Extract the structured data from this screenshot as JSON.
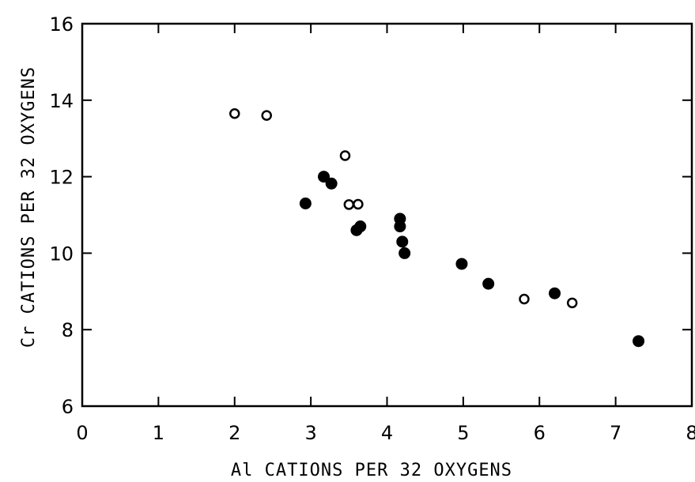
{
  "chart_data": {
    "type": "scatter",
    "xlabel": "Al CATIONS PER 32 OXYGENS",
    "ylabel": "Cr CATIONS PER 32 OXYGENS",
    "xlim": [
      0,
      8
    ],
    "ylim": [
      6,
      16
    ],
    "x_ticks": [
      "0",
      "1",
      "2",
      "3",
      "4",
      "5",
      "6",
      "7",
      "8"
    ],
    "y_ticks": [
      "6",
      "8",
      "10",
      "12",
      "14",
      "16"
    ],
    "grid": false,
    "legend": "none",
    "series": [
      {
        "marker": "open-circle",
        "points": [
          {
            "x": 2.0,
            "y": 13.65
          },
          {
            "x": 2.42,
            "y": 13.6
          },
          {
            "x": 3.45,
            "y": 12.55
          },
          {
            "x": 3.5,
            "y": 11.27
          },
          {
            "x": 3.62,
            "y": 11.28
          },
          {
            "x": 5.8,
            "y": 8.8
          },
          {
            "x": 6.43,
            "y": 8.7
          }
        ]
      },
      {
        "marker": "filled-circle",
        "points": [
          {
            "x": 2.93,
            "y": 11.3
          },
          {
            "x": 3.17,
            "y": 12.0
          },
          {
            "x": 3.27,
            "y": 11.82
          },
          {
            "x": 3.6,
            "y": 10.6
          },
          {
            "x": 3.65,
            "y": 10.7
          },
          {
            "x": 4.17,
            "y": 10.9
          },
          {
            "x": 4.17,
            "y": 10.7
          },
          {
            "x": 4.2,
            "y": 10.3
          },
          {
            "x": 4.23,
            "y": 10.0
          },
          {
            "x": 4.98,
            "y": 9.72
          },
          {
            "x": 5.33,
            "y": 9.2
          },
          {
            "x": 6.2,
            "y": 8.95
          },
          {
            "x": 7.3,
            "y": 7.7
          }
        ]
      }
    ]
  },
  "colors": {
    "ink": "#000000",
    "background": "#ffffff"
  }
}
